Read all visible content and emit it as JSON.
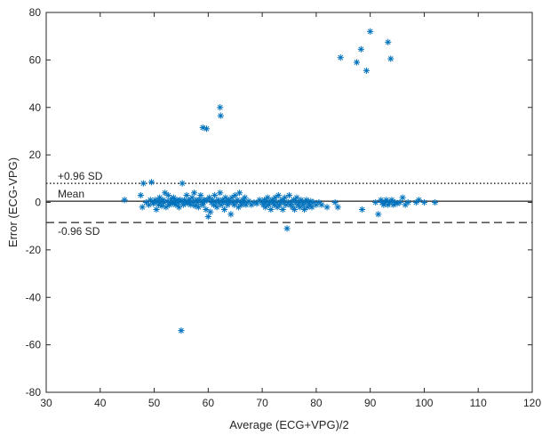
{
  "chart_data": {
    "type": "scatter",
    "title": "",
    "xlabel": "Average (ECG+VPG)/2",
    "ylabel": "Error (ECG-VPG)",
    "xlim": [
      30,
      120
    ],
    "ylim": [
      -80,
      80
    ],
    "xticks": [
      "30",
      "40",
      "50",
      "60",
      "70",
      "80",
      "90",
      "100",
      "110",
      "120"
    ],
    "yticks": [
      "-80",
      "-60",
      "-40",
      "-20",
      "0",
      "20",
      "40",
      "60",
      "80"
    ],
    "grid": false,
    "marker": "asterisk",
    "marker_color": "#0072BD",
    "reference_lines": [
      {
        "label": "+0.96 SD",
        "y": 8,
        "style": "dotted"
      },
      {
        "label": "Mean",
        "y": 0.5,
        "style": "solid"
      },
      {
        "label": "-0.96 SD",
        "y": -8.5,
        "style": "dashed"
      }
    ],
    "points": [
      [
        44.5,
        1
      ],
      [
        47.5,
        3
      ],
      [
        47.8,
        -2
      ],
      [
        48,
        8
      ],
      [
        48.5,
        0
      ],
      [
        49,
        -1
      ],
      [
        49.3,
        1
      ],
      [
        49.5,
        8.5
      ],
      [
        49.8,
        -0.5
      ],
      [
        50,
        0
      ],
      [
        50.2,
        1
      ],
      [
        50.4,
        -3
      ],
      [
        50.6,
        0.5
      ],
      [
        50.8,
        -1
      ],
      [
        51,
        2
      ],
      [
        51.2,
        0
      ],
      [
        51.4,
        -1.5
      ],
      [
        51.6,
        1
      ],
      [
        51.8,
        0
      ],
      [
        52,
        4
      ],
      [
        52.2,
        -2
      ],
      [
        52.4,
        0.5
      ],
      [
        52.6,
        3
      ],
      [
        52.8,
        -1
      ],
      [
        53,
        0
      ],
      [
        53.2,
        1.5
      ],
      [
        53.4,
        -0.5
      ],
      [
        53.6,
        2
      ],
      [
        53.8,
        0
      ],
      [
        54,
        -1
      ],
      [
        54.2,
        1
      ],
      [
        54.4,
        0
      ],
      [
        54.6,
        -2
      ],
      [
        54.8,
        1
      ],
      [
        55,
        0.5
      ],
      [
        55.2,
        8
      ],
      [
        55.4,
        -1
      ],
      [
        55.6,
        1
      ],
      [
        55.8,
        0
      ],
      [
        56,
        3
      ],
      [
        56.2,
        -0.5
      ],
      [
        56.4,
        1
      ],
      [
        56.6,
        0
      ],
      [
        56.8,
        -1
      ],
      [
        57,
        2
      ],
      [
        57.2,
        0
      ],
      [
        57.4,
        4
      ],
      [
        57.6,
        -1.5
      ],
      [
        57.8,
        1
      ],
      [
        58,
        0
      ],
      [
        58.2,
        -2
      ],
      [
        58.4,
        1
      ],
      [
        58.6,
        3
      ],
      [
        58.8,
        0
      ],
      [
        59,
        -1
      ],
      [
        59.2,
        1
      ],
      [
        59.4,
        0.5
      ],
      [
        59.6,
        -3
      ],
      [
        59.8,
        1
      ],
      [
        60,
        -6
      ],
      [
        60.2,
        2
      ],
      [
        60.4,
        -4
      ],
      [
        60.6,
        0
      ],
      [
        60.8,
        1
      ],
      [
        61,
        -1
      ],
      [
        61.2,
        3
      ],
      [
        61.4,
        0
      ],
      [
        61.6,
        -2
      ],
      [
        61.8,
        1
      ],
      [
        62,
        0
      ],
      [
        62.2,
        4
      ],
      [
        62.4,
        -1
      ],
      [
        62.6,
        1
      ],
      [
        62.8,
        0
      ],
      [
        63,
        -3
      ],
      [
        63.2,
        2
      ],
      [
        63.4,
        0
      ],
      [
        63.6,
        -1
      ],
      [
        63.8,
        1
      ],
      [
        64,
        0
      ],
      [
        64.2,
        -5
      ],
      [
        64.4,
        2
      ],
      [
        64.6,
        0
      ],
      [
        64.8,
        -1
      ],
      [
        65,
        3
      ],
      [
        65.2,
        0
      ],
      [
        65.4,
        1
      ],
      [
        65.6,
        -2
      ],
      [
        65.8,
        4
      ],
      [
        66,
        0
      ],
      [
        66.2,
        -1
      ],
      [
        66.4,
        1
      ],
      [
        66.6,
        0
      ],
      [
        66.8,
        2
      ],
      [
        67,
        -1
      ],
      [
        67.5,
        0.5
      ],
      [
        68,
        -1
      ],
      [
        68.5,
        0
      ],
      [
        69,
        -0.5
      ],
      [
        69.5,
        1
      ],
      [
        70,
        0
      ],
      [
        70.2,
        -1
      ],
      [
        70.4,
        1
      ],
      [
        70.6,
        -2
      ],
      [
        70.8,
        0
      ],
      [
        71,
        2
      ],
      [
        71.2,
        -1
      ],
      [
        71.4,
        0
      ],
      [
        71.6,
        -3
      ],
      [
        71.8,
        1
      ],
      [
        72,
        0
      ],
      [
        72.2,
        -1
      ],
      [
        72.4,
        2
      ],
      [
        72.6,
        0
      ],
      [
        72.8,
        -2
      ],
      [
        73,
        3
      ],
      [
        73.2,
        -1
      ],
      [
        73.4,
        0
      ],
      [
        73.6,
        1
      ],
      [
        73.8,
        -3
      ],
      [
        74,
        0
      ],
      [
        74.2,
        2
      ],
      [
        74.4,
        -1
      ],
      [
        74.6,
        -11
      ],
      [
        74.8,
        0
      ],
      [
        75,
        3
      ],
      [
        75.2,
        -1
      ],
      [
        75.4,
        0
      ],
      [
        75.6,
        -2
      ],
      [
        75.8,
        1
      ],
      [
        76,
        -3
      ],
      [
        76.2,
        0
      ],
      [
        76.4,
        2
      ],
      [
        76.6,
        -1
      ],
      [
        76.8,
        0
      ],
      [
        77,
        -2
      ],
      [
        77.2,
        1
      ],
      [
        77.4,
        0
      ],
      [
        77.6,
        -1
      ],
      [
        77.8,
        -3
      ],
      [
        78,
        0
      ],
      [
        78.2,
        1
      ],
      [
        78.4,
        -2
      ],
      [
        78.6,
        0
      ],
      [
        78.8,
        -1
      ],
      [
        79,
        0.5
      ],
      [
        79.2,
        -2
      ],
      [
        79.5,
        0
      ],
      [
        80,
        -1
      ],
      [
        80.5,
        0
      ],
      [
        81,
        -1
      ],
      [
        82,
        -2
      ],
      [
        83.5,
        0
      ],
      [
        84,
        -2
      ],
      [
        88.5,
        -3
      ],
      [
        91,
        0
      ],
      [
        91.5,
        -5
      ],
      [
        92,
        1
      ],
      [
        92.2,
        0
      ],
      [
        92.5,
        -1
      ],
      [
        92.8,
        0
      ],
      [
        93,
        1
      ],
      [
        93.3,
        -1
      ],
      [
        93.6,
        0
      ],
      [
        94,
        1
      ],
      [
        94.3,
        -1
      ],
      [
        94.6,
        0
      ],
      [
        95,
        -0.5
      ],
      [
        95.5,
        0
      ],
      [
        96,
        2
      ],
      [
        96.5,
        -1
      ],
      [
        97,
        0
      ],
      [
        98.5,
        0
      ],
      [
        99,
        1
      ],
      [
        100,
        0
      ],
      [
        102,
        0
      ],
      [
        59,
        31.5
      ],
      [
        59.7,
        31
      ],
      [
        62.2,
        40
      ],
      [
        62.3,
        36.5
      ],
      [
        84.5,
        61
      ],
      [
        87.5,
        59
      ],
      [
        88.3,
        64.5
      ],
      [
        89.3,
        55.5
      ],
      [
        90,
        72
      ],
      [
        93.3,
        67.5
      ],
      [
        93.8,
        60.5
      ],
      [
        55,
        -54
      ]
    ]
  }
}
